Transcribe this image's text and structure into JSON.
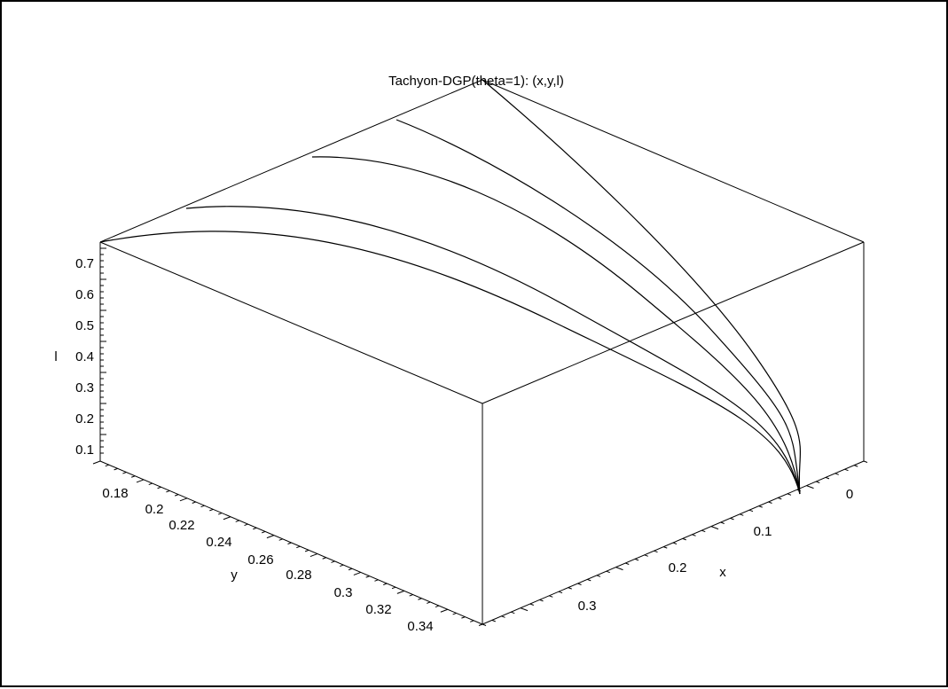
{
  "chart_data": {
    "type": "line",
    "title": "Tachyon-DGP(theta=1): (x,y,l)",
    "xlabel": "x",
    "ylabel": "y",
    "zlabel": "l",
    "x_ticks": [
      "0",
      "0.1",
      "0.2",
      "0.3"
    ],
    "y_ticks": [
      "0.18",
      "0.2",
      "0.22",
      "0.24",
      "0.26",
      "0.28",
      "0.3",
      "0.32",
      "0.34"
    ],
    "z_ticks": [
      "0.1",
      "0.2",
      "0.3",
      "0.4",
      "0.5",
      "0.6",
      "0.7"
    ],
    "series": [
      {
        "points": [
          [
            0,
            0.36,
            0.045
          ],
          [
            0.05,
            0.33,
            0.25
          ],
          [
            0.1,
            0.3,
            0.42
          ],
          [
            0.15,
            0.27,
            0.56
          ],
          [
            0.2,
            0.24,
            0.66
          ],
          [
            0.27,
            0.2,
            0.74
          ],
          [
            0.29,
            0.185,
            0.76
          ]
        ]
      },
      {
        "points": [
          [
            0,
            0.36,
            0.045
          ],
          [
            0.05,
            0.33,
            0.26
          ],
          [
            0.1,
            0.3,
            0.44
          ],
          [
            0.15,
            0.27,
            0.59
          ],
          [
            0.2,
            0.25,
            0.7
          ],
          [
            0.23,
            0.235,
            0.76
          ]
        ]
      },
      {
        "points": [
          [
            0,
            0.36,
            0.045
          ],
          [
            0.05,
            0.34,
            0.27
          ],
          [
            0.1,
            0.31,
            0.47
          ],
          [
            0.15,
            0.29,
            0.64
          ],
          [
            0.175,
            0.28,
            0.76
          ]
        ]
      },
      {
        "points": [
          [
            0,
            0.36,
            0.045
          ],
          [
            0.05,
            0.34,
            0.29
          ],
          [
            0.1,
            0.32,
            0.52
          ],
          [
            0.125,
            0.31,
            0.68
          ],
          [
            0.13,
            0.31,
            0.76
          ]
        ]
      },
      {
        "points": [
          [
            0,
            0.36,
            0.045
          ],
          [
            0.04,
            0.35,
            0.33
          ],
          [
            0.07,
            0.34,
            0.58
          ],
          [
            0.095,
            0.33,
            0.76
          ]
        ]
      }
    ]
  }
}
